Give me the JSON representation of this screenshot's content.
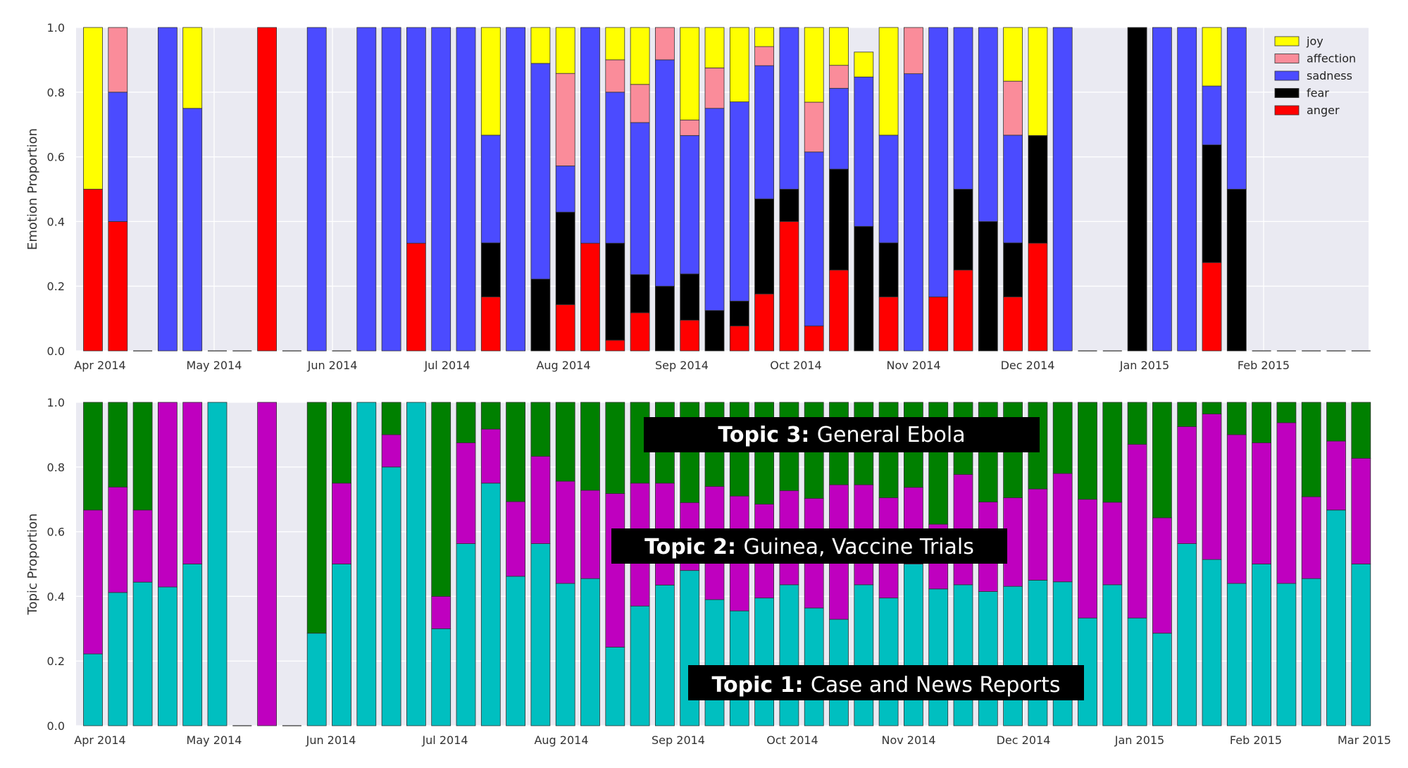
{
  "chart_data": [
    {
      "type": "bar",
      "stacked": true,
      "ylabel": "Emotion Proportion",
      "ylim": [
        0,
        1
      ],
      "yticks": [
        "0.0",
        "0.2",
        "0.4",
        "0.6",
        "0.8",
        "1.0"
      ],
      "xticks": [
        "Apr 2014",
        "May 2014",
        "Jun 2014",
        "Jul 2014",
        "Aug 2014",
        "Sep 2014",
        "Oct 2014",
        "Nov 2014",
        "Dec 2014",
        "Jan 2015",
        "Feb 2015"
      ],
      "grid": true,
      "legend_position": "top-right",
      "series": [
        {
          "name": "anger",
          "color": "#ff0000",
          "values": [
            0.5,
            0.4,
            0,
            0,
            0,
            0,
            0,
            1,
            0,
            0,
            0,
            0,
            0,
            0.333,
            0,
            0,
            0.167,
            0,
            0,
            0.143,
            0.333,
            0.033,
            0.118,
            0,
            0.095,
            0,
            0.077,
            0.176,
            0.4,
            0.077,
            0.25,
            0,
            0.167,
            0,
            0.167,
            0.25,
            0,
            0.167,
            0.333,
            0,
            0,
            0,
            0,
            0,
            0,
            0.273,
            0,
            0,
            0,
            0,
            0,
            0
          ]
        },
        {
          "name": "fear",
          "color": "#000000",
          "values": [
            0,
            0,
            0,
            0,
            0,
            0,
            0,
            0,
            0,
            0,
            0,
            0,
            0,
            0,
            0,
            0,
            0.167,
            0,
            0.222,
            0.286,
            0,
            0.3,
            0.118,
            0.2,
            0.143,
            0.125,
            0.077,
            0.294,
            0.1,
            0,
            0.312,
            0.385,
            0.167,
            0,
            0,
            0.25,
            0.4,
            0.167,
            0.333,
            0,
            0,
            0,
            1,
            0,
            0,
            0.364,
            0.5,
            0,
            0,
            0,
            0,
            0
          ]
        },
        {
          "name": "sadness",
          "color": "#4b4bff",
          "values": [
            0,
            0.4,
            0,
            1,
            0.75,
            0,
            0,
            0,
            0,
            1,
            0,
            1,
            1,
            0.667,
            1,
            1,
            0.333,
            1,
            0.667,
            0.143,
            0.667,
            0.467,
            0.47,
            0.7,
            0.428,
            0.625,
            0.616,
            0.412,
            0.5,
            0.538,
            0.25,
            0.462,
            0.333,
            0.857,
            0.833,
            0.5,
            0.6,
            0.333,
            0,
            1,
            0,
            0,
            0,
            1,
            1,
            0.182,
            0.5,
            0,
            0,
            0,
            0,
            0
          ]
        },
        {
          "name": "affection",
          "color": "#fa8c9a",
          "values": [
            0,
            0.2,
            0,
            0,
            0,
            0,
            0,
            0,
            0,
            0,
            0,
            0,
            0,
            0,
            0,
            0,
            0,
            0,
            0,
            0.286,
            0,
            0.1,
            0.118,
            0.1,
            0.048,
            0.125,
            0,
            0.059,
            0,
            0.154,
            0.071,
            0,
            0,
            0.143,
            0,
            0,
            0,
            0.167,
            0,
            0,
            0,
            0,
            0,
            0,
            0,
            0,
            0,
            0,
            0,
            0,
            0,
            0
          ]
        },
        {
          "name": "joy",
          "color": "#ffff00",
          "values": [
            0.5,
            0,
            0,
            0,
            0.25,
            0,
            0,
            0,
            0,
            0,
            0,
            0,
            0,
            0,
            0,
            0,
            0.333,
            0,
            0.111,
            0.142,
            0,
            0.1,
            0.176,
            0,
            0.286,
            0.125,
            0.23,
            0.059,
            0,
            0.231,
            0.187,
            0.077,
            0.333,
            0,
            0,
            0,
            0,
            0.166,
            0.334,
            0,
            0,
            0,
            0,
            0,
            0,
            0.181,
            0,
            0,
            0,
            0,
            0,
            0
          ]
        }
      ]
    },
    {
      "type": "bar",
      "stacked": true,
      "ylabel": "Topic Proportion",
      "ylim": [
        0,
        1
      ],
      "yticks": [
        "0.0",
        "0.2",
        "0.4",
        "0.6",
        "0.8",
        "1.0"
      ],
      "xticks": [
        "Apr 2014",
        "May 2014",
        "Jun 2014",
        "Jul 2014",
        "Aug 2014",
        "Sep 2014",
        "Oct 2014",
        "Nov 2014",
        "Dec 2014",
        "Jan 2015",
        "Feb 2015",
        "Mar 2015"
      ],
      "grid": true,
      "annotations": [
        {
          "bold": "Topic 3:",
          "text": "General Ebola"
        },
        {
          "bold": "Topic 2:",
          "text": "Guinea, Vaccine Trials"
        },
        {
          "bold": "Topic 1:",
          "text": "Case and News Reports"
        }
      ],
      "series": [
        {
          "name": "topic1",
          "color": "#00bfc0",
          "values": [
            0.222,
            0.412,
            0.444,
            0.429,
            0.5,
            1,
            0,
            0,
            0,
            0.286,
            0.5,
            1,
            0.8,
            1,
            0.3,
            0.563,
            0.75,
            0.462,
            0.563,
            0.44,
            0.455,
            0.243,
            0.37,
            0.435,
            0.48,
            0.39,
            0.355,
            0.395,
            0.436,
            0.364,
            0.329,
            0.436,
            0.395,
            0.5,
            0.423,
            0.436,
            0.415,
            0.431,
            0.45,
            0.445,
            0.333,
            0.436,
            0.333,
            0.286,
            0.563,
            0.514,
            0.44,
            0.5,
            0.44,
            0.455,
            0.667,
            0.5
          ]
        },
        {
          "name": "topic2",
          "color": "#bf00bf",
          "values": [
            0.445,
            0.326,
            0.223,
            0.571,
            0.5,
            0,
            0,
            1,
            0,
            0,
            0.25,
            0,
            0.1,
            0,
            0.1,
            0.312,
            0.167,
            0.231,
            0.27,
            0.316,
            0.273,
            0.475,
            0.38,
            0.315,
            0.21,
            0.35,
            0.355,
            0.29,
            0.291,
            0.339,
            0.416,
            0.309,
            0.31,
            0.237,
            0.2,
            0.341,
            0.277,
            0.274,
            0.282,
            0.335,
            0.367,
            0.255,
            0.537,
            0.357,
            0.362,
            0.45,
            0.46,
            0.375,
            0.497,
            0.253,
            0.213,
            0.327
          ]
        },
        {
          "name": "topic3",
          "color": "#008000",
          "values": [
            0.333,
            0.262,
            0.333,
            0,
            0,
            0,
            0,
            0,
            0,
            0.714,
            0.25,
            0,
            0.1,
            0,
            0.6,
            0.125,
            0.083,
            0.307,
            0.167,
            0.244,
            0.272,
            0.282,
            0.25,
            0.25,
            0.31,
            0.26,
            0.29,
            0.315,
            0.273,
            0.297,
            0.255,
            0.255,
            0.295,
            0.263,
            0.377,
            0.223,
            0.308,
            0.295,
            0.268,
            0.22,
            0.3,
            0.309,
            0.13,
            0.357,
            0.075,
            0.036,
            0.1,
            0.125,
            0.063,
            0.292,
            0.12,
            0.173
          ]
        }
      ]
    }
  ]
}
